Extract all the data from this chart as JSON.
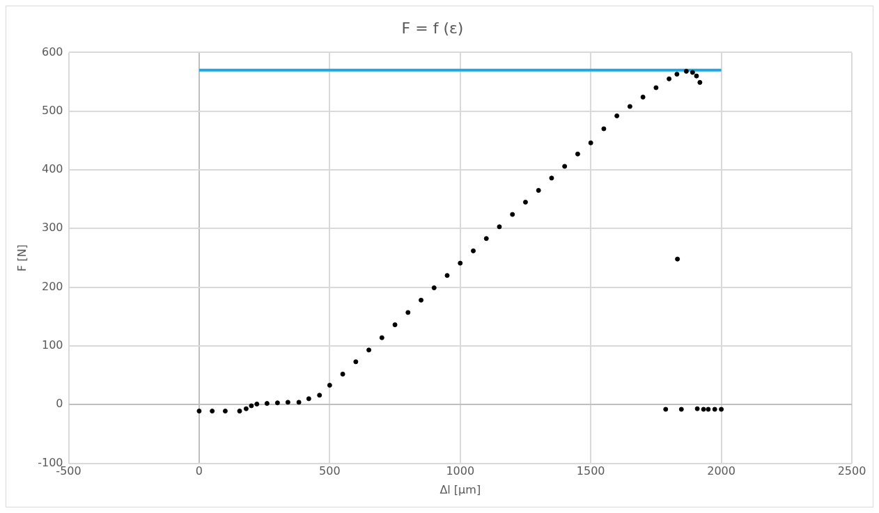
{
  "chart_data": {
    "type": "scatter",
    "title": "F = f (ε)",
    "xlabel": "Δl [µm]",
    "ylabel": "F [N]",
    "xlim": [
      -500,
      2500
    ],
    "xticks": [
      -500,
      0,
      500,
      1000,
      1500,
      2000,
      2500
    ],
    "ylim": [
      -100,
      600
    ],
    "yticks": [
      -100,
      0,
      100,
      200,
      300,
      400,
      500,
      600
    ],
    "grid": true,
    "legend": false,
    "marker": "circle",
    "series": [
      {
        "type": "scatter",
        "color": "#000000",
        "x": [
          0,
          50,
          100,
          155,
          180,
          200,
          221,
          260,
          300,
          340,
          382,
          420,
          461,
          500,
          550,
          600,
          650,
          700,
          750,
          800,
          850,
          900,
          950,
          1000,
          1050,
          1100,
          1150,
          1200,
          1250,
          1300,
          1350,
          1400,
          1450,
          1500,
          1550,
          1600,
          1650,
          1700,
          1750,
          1800,
          1830,
          1866,
          1890,
          1905,
          1918,
          1832,
          1787,
          1847,
          1908,
          1932,
          1950,
          1975,
          2000
        ],
        "values": [
          -11,
          -11,
          -11,
          -11,
          -7,
          -2,
          1,
          2,
          3,
          4,
          4,
          10,
          16,
          33,
          52,
          73,
          93,
          114,
          136,
          157,
          178,
          199,
          220,
          241,
          262,
          283,
          303,
          324,
          345,
          365,
          386,
          406,
          427,
          446,
          470,
          492,
          508,
          524,
          540,
          555,
          563,
          568,
          566,
          560,
          549,
          248,
          -8,
          -8,
          -7,
          -8,
          -8,
          -8,
          -8
        ]
      },
      {
        "type": "line",
        "color": "#1ea7e0",
        "marker": "none",
        "x": [
          0,
          2000
        ],
        "values": [
          570,
          570
        ]
      }
    ]
  }
}
